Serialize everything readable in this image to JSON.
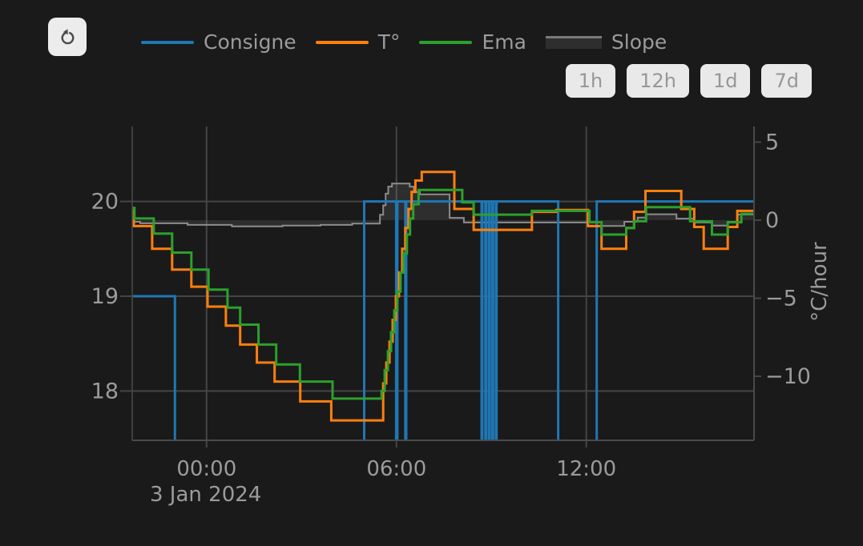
{
  "theme": {
    "background": "#1a1a1a",
    "text": "#9b9b9b",
    "grid": "#454545",
    "axis": "#4a4a4a",
    "button_bg": "#e9e9e9",
    "button_text": "#979797"
  },
  "icons": {
    "refresh": "clockwise-open-circle-arrow"
  },
  "legend": {
    "items": [
      {
        "label": "Consigne",
        "color": "#1f77b4",
        "swatch": "line"
      },
      {
        "label": "T°",
        "color": "#ff7f0e",
        "swatch": "line"
      },
      {
        "label": "Ema",
        "color": "#2ca02c",
        "swatch": "line"
      },
      {
        "label": "Slope",
        "color": "#7a7a7a",
        "swatch": "area",
        "fill": "#2e2e2e"
      }
    ]
  },
  "range_buttons": [
    "1h",
    "12h",
    "1d",
    "7d"
  ],
  "chart_data": {
    "type": "line",
    "x_axis": {
      "unit": "hours_from_midnight",
      "range": [
        -2.35,
        17.3
      ],
      "ticks": [
        {
          "value": 0,
          "label": "00:00"
        },
        {
          "value": 6,
          "label": "06:00"
        },
        {
          "value": 12,
          "label": "12:00"
        }
      ],
      "date_label": "3 Jan 2024"
    },
    "y_left": {
      "unit": "°C",
      "range": [
        17.48,
        20.79
      ],
      "ticks": [
        {
          "value": 20,
          "label": "20"
        },
        {
          "value": 19,
          "label": "19"
        },
        {
          "value": 18,
          "label": "18"
        }
      ]
    },
    "y_right": {
      "label": "°C/hour",
      "range": [
        -14.1,
        6.0
      ],
      "ticks": [
        {
          "value": 5,
          "label": "5"
        },
        {
          "value": 0,
          "label": "0"
        },
        {
          "value": -5,
          "label": "−5"
        },
        {
          "value": -10,
          "label": "−10"
        }
      ]
    },
    "series": [
      {
        "name": "Consigne",
        "axis": "left",
        "color": "#1f77b4",
        "style": "step-segments",
        "width": 3,
        "segments": [
          {
            "from": -2.35,
            "to": -1.0,
            "value": 19
          },
          {
            "from": 4.98,
            "to": 5.99,
            "value": 20
          },
          {
            "from": 6.03,
            "to": 6.28,
            "value": 20
          },
          {
            "from": 6.31,
            "to": 8.69,
            "value": 20
          },
          {
            "from": 8.715,
            "to": 8.81,
            "value": 20
          },
          {
            "from": 8.835,
            "to": 8.92,
            "value": 20
          },
          {
            "from": 8.945,
            "to": 9.03,
            "value": 20
          },
          {
            "from": 9.055,
            "to": 9.14,
            "value": 20
          },
          {
            "from": 9.165,
            "to": 11.11,
            "value": 20
          },
          {
            "from": 12.33,
            "to": 17.3,
            "value": 20
          }
        ]
      },
      {
        "name": "T°",
        "axis": "left",
        "color": "#ff7f0e",
        "style": "step",
        "width": 3,
        "points": [
          [
            -2.35,
            19.9
          ],
          [
            -2.3,
            19.74
          ],
          [
            -1.72,
            19.5
          ],
          [
            -1.09,
            19.28
          ],
          [
            -0.48,
            19.1
          ],
          [
            0.03,
            18.89
          ],
          [
            0.61,
            18.69
          ],
          [
            1.06,
            18.49
          ],
          [
            1.59,
            18.3
          ],
          [
            2.15,
            18.1
          ],
          [
            2.96,
            17.89
          ],
          [
            3.94,
            17.69
          ],
          [
            5.58,
            18.08
          ],
          [
            5.68,
            18.3
          ],
          [
            5.78,
            18.52
          ],
          [
            5.88,
            18.75
          ],
          [
            5.98,
            19.0
          ],
          [
            6.08,
            19.25
          ],
          [
            6.18,
            19.5
          ],
          [
            6.28,
            19.72
          ],
          [
            6.38,
            19.92
          ],
          [
            6.48,
            20.1
          ],
          [
            6.6,
            20.22
          ],
          [
            6.8,
            20.31
          ],
          [
            7.83,
            19.92
          ],
          [
            8.44,
            19.7
          ],
          [
            10.28,
            19.89
          ],
          [
            11.05,
            19.91
          ],
          [
            12.05,
            19.74
          ],
          [
            12.48,
            19.5
          ],
          [
            13.26,
            19.72
          ],
          [
            13.51,
            19.89
          ],
          [
            13.87,
            20.11
          ],
          [
            15.0,
            19.92
          ],
          [
            15.41,
            19.73
          ],
          [
            15.71,
            19.5
          ],
          [
            16.47,
            19.73
          ],
          [
            16.77,
            19.9
          ]
        ]
      },
      {
        "name": "Ema",
        "axis": "left",
        "color": "#2ca02c",
        "style": "step",
        "width": 3,
        "points": [
          [
            -2.35,
            19.93
          ],
          [
            -2.28,
            19.82
          ],
          [
            -1.67,
            19.66
          ],
          [
            -1.09,
            19.46
          ],
          [
            -0.48,
            19.28
          ],
          [
            0.06,
            19.07
          ],
          [
            0.66,
            18.88
          ],
          [
            1.06,
            18.7
          ],
          [
            1.64,
            18.49
          ],
          [
            2.2,
            18.28
          ],
          [
            2.95,
            18.1
          ],
          [
            3.98,
            17.92
          ],
          [
            5.53,
            18.0
          ],
          [
            5.63,
            18.22
          ],
          [
            5.73,
            18.42
          ],
          [
            5.83,
            18.62
          ],
          [
            5.93,
            18.85
          ],
          [
            6.03,
            19.05
          ],
          [
            6.13,
            19.25
          ],
          [
            6.23,
            19.45
          ],
          [
            6.33,
            19.65
          ],
          [
            6.43,
            19.82
          ],
          [
            6.53,
            19.97
          ],
          [
            6.7,
            20.12
          ],
          [
            8.08,
            19.99
          ],
          [
            8.44,
            19.86
          ],
          [
            10.28,
            19.9
          ],
          [
            12.1,
            19.78
          ],
          [
            12.48,
            19.65
          ],
          [
            13.26,
            19.72
          ],
          [
            13.51,
            19.79
          ],
          [
            13.89,
            19.94
          ],
          [
            15.28,
            19.79
          ],
          [
            15.97,
            19.65
          ],
          [
            16.47,
            19.78
          ],
          [
            16.9,
            19.87
          ]
        ]
      },
      {
        "name": "Slope",
        "axis": "right",
        "color": "#8c8c8c",
        "fill": "rgba(140,140,140,0.18)",
        "style": "step-area",
        "width": 2,
        "points": [
          [
            -2.35,
            -0.1
          ],
          [
            -2.1,
            -0.2
          ],
          [
            -0.6,
            -0.3
          ],
          [
            0.8,
            -0.4
          ],
          [
            2.4,
            -0.35
          ],
          [
            3.6,
            -0.3
          ],
          [
            4.6,
            -0.22
          ],
          [
            5.48,
            0.35
          ],
          [
            5.58,
            0.95
          ],
          [
            5.66,
            1.7
          ],
          [
            5.74,
            2.15
          ],
          [
            5.86,
            2.35
          ],
          [
            6.42,
            2.15
          ],
          [
            6.55,
            1.8
          ],
          [
            6.74,
            1.65
          ],
          [
            7.68,
            0.15
          ],
          [
            8.13,
            -0.15
          ],
          [
            12.48,
            -0.37
          ],
          [
            13.2,
            -0.1
          ],
          [
            13.62,
            0.17
          ],
          [
            13.9,
            0.38
          ],
          [
            14.85,
            0.1
          ],
          [
            15.4,
            -0.15
          ],
          [
            15.97,
            -0.35
          ],
          [
            16.47,
            -0.1
          ],
          [
            16.77,
            0.36
          ]
        ]
      }
    ]
  }
}
